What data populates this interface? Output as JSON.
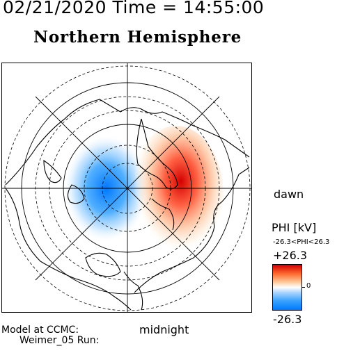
{
  "header": {
    "datetime": "02/21/2020 Time = 14:55:00",
    "hemisphere": "Northern Hemisphere"
  },
  "map": {
    "dawn_label": "dawn",
    "midnight_label": "midnight"
  },
  "footer": {
    "model_label": "Model at CCMC:",
    "run_label": "Weimer_05 Run:"
  },
  "colorbar": {
    "title": "PHI [kV]",
    "range_text": "-26.3<PHI<26.3",
    "max_label": "+26.3",
    "zero_label": "0",
    "min_label": "-26.3",
    "colors": {
      "positive": "#d00000",
      "neutral": "#ffffff",
      "negative": "#0078ff"
    }
  }
}
